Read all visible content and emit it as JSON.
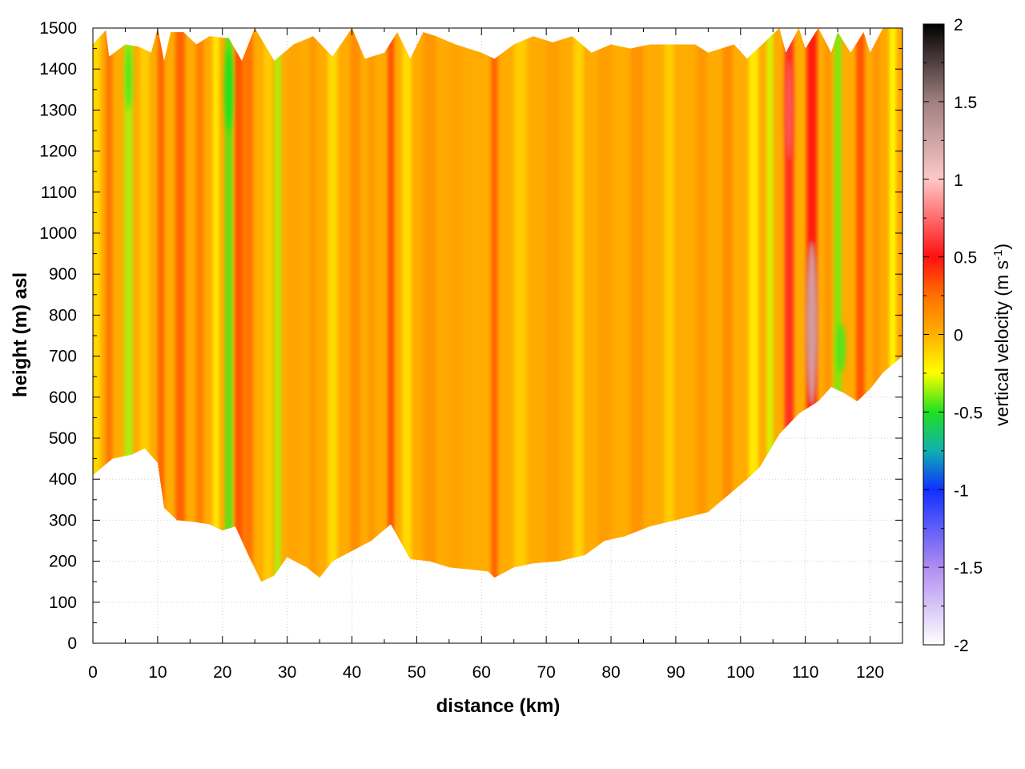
{
  "chart_data": {
    "type": "heatmap",
    "title": "",
    "xlabel": "distance (km)",
    "ylabel": "height (m) asl",
    "colorbar_label": "vertical velocity (m s",
    "colorbar_label_sup": "-1",
    "colorbar_label_tail": ")",
    "xlim": [
      0,
      125
    ],
    "ylim": [
      0,
      1500
    ],
    "clim": [
      -2,
      2
    ],
    "grid": true,
    "x_ticks": [
      0,
      10,
      20,
      30,
      40,
      50,
      60,
      70,
      80,
      90,
      100,
      110,
      120
    ],
    "y_ticks": [
      0,
      100,
      200,
      300,
      400,
      500,
      600,
      700,
      800,
      900,
      1000,
      1100,
      1200,
      1300,
      1400,
      1500
    ],
    "c_ticks": [
      2,
      1.5,
      1,
      0.5,
      0,
      -0.5,
      -1,
      -1.5,
      -2
    ],
    "colormap": [
      {
        "v": -2.0,
        "color": "#ffffff"
      },
      {
        "v": -1.5,
        "color": "#b08cf0"
      },
      {
        "v": -1.0,
        "color": "#1030ff"
      },
      {
        "v": -0.75,
        "color": "#10b0b0"
      },
      {
        "v": -0.5,
        "color": "#20e020"
      },
      {
        "v": -0.25,
        "color": "#ffff00"
      },
      {
        "v": 0.0,
        "color": "#ffb000"
      },
      {
        "v": 0.25,
        "color": "#ff7000"
      },
      {
        "v": 0.5,
        "color": "#ff1010"
      },
      {
        "v": 1.0,
        "color": "#ffc8c8"
      },
      {
        "v": 1.5,
        "color": "#a08080"
      },
      {
        "v": 2.0,
        "color": "#000000"
      }
    ],
    "terrain_bottom": [
      [
        0,
        410
      ],
      [
        3,
        450
      ],
      [
        6,
        460
      ],
      [
        8,
        475
      ],
      [
        10,
        440
      ],
      [
        11,
        330
      ],
      [
        13,
        300
      ],
      [
        16,
        295
      ],
      [
        18,
        290
      ],
      [
        20,
        275
      ],
      [
        22,
        285
      ],
      [
        24,
        215
      ],
      [
        26,
        150
      ],
      [
        28,
        165
      ],
      [
        30,
        210
      ],
      [
        33,
        185
      ],
      [
        35,
        160
      ],
      [
        37,
        200
      ],
      [
        40,
        225
      ],
      [
        43,
        250
      ],
      [
        46,
        290
      ],
      [
        49,
        205
      ],
      [
        52,
        200
      ],
      [
        55,
        185
      ],
      [
        58,
        180
      ],
      [
        61,
        175
      ],
      [
        62,
        160
      ],
      [
        65,
        185
      ],
      [
        68,
        195
      ],
      [
        72,
        200
      ],
      [
        76,
        215
      ],
      [
        79,
        250
      ],
      [
        82,
        260
      ],
      [
        86,
        285
      ],
      [
        90,
        300
      ],
      [
        95,
        320
      ],
      [
        98,
        360
      ],
      [
        101,
        400
      ],
      [
        103,
        430
      ],
      [
        106,
        510
      ],
      [
        109,
        560
      ],
      [
        112,
        590
      ],
      [
        114,
        625
      ],
      [
        116,
        610
      ],
      [
        118,
        590
      ],
      [
        120,
        620
      ],
      [
        122,
        660
      ],
      [
        125,
        700
      ]
    ],
    "terrain_top": [
      [
        0,
        1460
      ],
      [
        2,
        1495
      ],
      [
        2.5,
        1430
      ],
      [
        5,
        1460
      ],
      [
        7,
        1455
      ],
      [
        9,
        1440
      ],
      [
        10,
        1500
      ],
      [
        11,
        1420
      ],
      [
        12,
        1490
      ],
      [
        14,
        1490
      ],
      [
        16,
        1460
      ],
      [
        18,
        1480
      ],
      [
        21,
        1475
      ],
      [
        23,
        1420
      ],
      [
        25,
        1500
      ],
      [
        28,
        1420
      ],
      [
        31,
        1460
      ],
      [
        34,
        1480
      ],
      [
        37,
        1430
      ],
      [
        40,
        1500
      ],
      [
        42,
        1425
      ],
      [
        45,
        1440
      ],
      [
        47,
        1490
      ],
      [
        49,
        1425
      ],
      [
        51,
        1490
      ],
      [
        53,
        1480
      ],
      [
        56,
        1460
      ],
      [
        60,
        1440
      ],
      [
        62,
        1425
      ],
      [
        65,
        1460
      ],
      [
        68,
        1480
      ],
      [
        71,
        1465
      ],
      [
        74,
        1480
      ],
      [
        77,
        1440
      ],
      [
        80,
        1460
      ],
      [
        83,
        1450
      ],
      [
        86,
        1460
      ],
      [
        93,
        1460
      ],
      [
        95,
        1440
      ],
      [
        99,
        1460
      ],
      [
        101,
        1425
      ],
      [
        104,
        1470
      ],
      [
        106,
        1500
      ],
      [
        107,
        1440
      ],
      [
        109,
        1500
      ],
      [
        110,
        1450
      ],
      [
        112,
        1500
      ],
      [
        114,
        1440
      ],
      [
        115,
        1490
      ],
      [
        117,
        1440
      ],
      [
        119,
        1490
      ],
      [
        120,
        1440
      ],
      [
        122,
        1500
      ],
      [
        125,
        1500
      ]
    ],
    "columns": [
      {
        "x": 0.5,
        "w": 1.2,
        "v": -0.15
      },
      {
        "x": 2.5,
        "w": 1.0,
        "v": 0.25
      },
      {
        "x": 5.5,
        "w": 1.3,
        "v": -0.35
      },
      {
        "x": 8.0,
        "w": 1.5,
        "v": -0.1
      },
      {
        "x": 10.5,
        "w": 1.0,
        "v": 0.3
      },
      {
        "x": 13.5,
        "w": 1.5,
        "v": 0.3
      },
      {
        "x": 16.5,
        "w": 1.2,
        "v": 0.2
      },
      {
        "x": 19.0,
        "w": 1.0,
        "v": -0.2
      },
      {
        "x": 21.0,
        "w": 1.2,
        "v": -0.45
      },
      {
        "x": 22.5,
        "w": 1.3,
        "v": 0.35
      },
      {
        "x": 24.0,
        "w": 1.5,
        "v": 0.25
      },
      {
        "x": 27.0,
        "w": 1.2,
        "v": -0.1
      },
      {
        "x": 28.5,
        "w": 1.0,
        "v": -0.35
      },
      {
        "x": 31.0,
        "w": 1.5,
        "v": 0.05
      },
      {
        "x": 34.0,
        "w": 1.0,
        "v": 0.1
      },
      {
        "x": 37.0,
        "w": 1.5,
        "v": -0.15
      },
      {
        "x": 40.5,
        "w": 1.5,
        "v": 0.15
      },
      {
        "x": 43.0,
        "w": 1.0,
        "v": 0.1
      },
      {
        "x": 46.0,
        "w": 1.0,
        "v": 0.35
      },
      {
        "x": 48.5,
        "w": 1.5,
        "v": -0.15
      },
      {
        "x": 52.0,
        "w": 2.0,
        "v": 0.1
      },
      {
        "x": 56.0,
        "w": 2.0,
        "v": 0.05
      },
      {
        "x": 62.0,
        "w": 1.0,
        "v": 0.3
      },
      {
        "x": 66.0,
        "w": 2.0,
        "v": -0.1
      },
      {
        "x": 71.0,
        "w": 2.0,
        "v": 0.08
      },
      {
        "x": 75.0,
        "w": 1.5,
        "v": -0.12
      },
      {
        "x": 79.0,
        "w": 2.0,
        "v": 0.08
      },
      {
        "x": 84.0,
        "w": 2.0,
        "v": 0.12
      },
      {
        "x": 89.0,
        "w": 1.5,
        "v": -0.1
      },
      {
        "x": 94.0,
        "w": 1.5,
        "v": 0.1
      },
      {
        "x": 98.0,
        "w": 1.5,
        "v": 0.15
      },
      {
        "x": 102.0,
        "w": 1.5,
        "v": -0.2
      },
      {
        "x": 104.5,
        "w": 1.0,
        "v": -0.3
      },
      {
        "x": 107.5,
        "w": 1.4,
        "v": 0.55
      },
      {
        "x": 111.0,
        "w": 1.6,
        "v": 0.5
      },
      {
        "x": 113.5,
        "w": 1.2,
        "v": 0.1
      },
      {
        "x": 115.0,
        "w": 1.2,
        "v": -0.4
      },
      {
        "x": 118.5,
        "w": 1.3,
        "v": 0.35
      },
      {
        "x": 121.0,
        "w": 1.2,
        "v": 0.1
      },
      {
        "x": 123.5,
        "w": 1.0,
        "v": -0.25
      }
    ],
    "hotspots": [
      {
        "x": 111.0,
        "y": 780,
        "rx": 0.9,
        "ry": 200,
        "v": 1.25
      },
      {
        "x": 107.5,
        "y": 1300,
        "rx": 0.6,
        "ry": 120,
        "v": 0.7
      },
      {
        "x": 21.0,
        "y": 1350,
        "rx": 0.6,
        "ry": 100,
        "v": -0.5
      },
      {
        "x": 5.5,
        "y": 1380,
        "rx": 0.5,
        "ry": 80,
        "v": -0.45
      },
      {
        "x": 115.5,
        "y": 720,
        "rx": 0.7,
        "ry": 60,
        "v": -0.45
      }
    ]
  }
}
